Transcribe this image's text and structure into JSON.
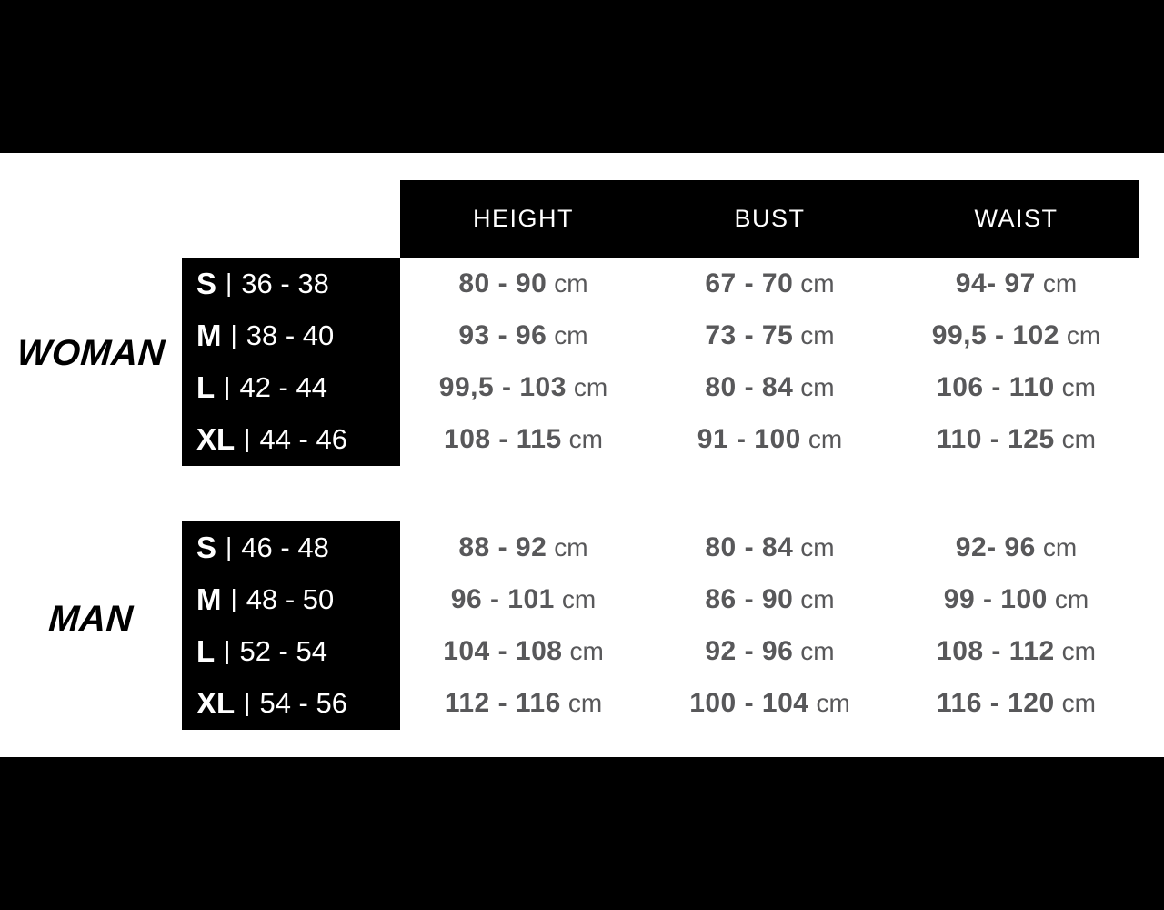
{
  "chart_data": {
    "type": "table",
    "columns": [
      "HEIGHT",
      "BUST",
      "WAIST"
    ],
    "unit": "cm",
    "separator": "|",
    "groups": [
      {
        "label": "WOMAN",
        "sizes": [
          {
            "size": "S",
            "eu_range": "36 - 38",
            "height": "80 - 90",
            "bust": "67 - 70",
            "waist": "94- 97"
          },
          {
            "size": "M",
            "eu_range": "38 - 40",
            "height": "93 - 96",
            "bust": "73 - 75",
            "waist": "99,5 - 102"
          },
          {
            "size": "L",
            "eu_range": "42 - 44",
            "height": "99,5 - 103",
            "bust": "80 - 84",
            "waist": "106 - 110"
          },
          {
            "size": "XL",
            "eu_range": "44 - 46",
            "height": "108 - 115",
            "bust": "91 - 100",
            "waist": "110 - 125"
          }
        ]
      },
      {
        "label": "MAN",
        "sizes": [
          {
            "size": "S",
            "eu_range": "46 - 48",
            "height": "88 - 92",
            "bust": "80 - 84",
            "waist": "92- 96"
          },
          {
            "size": "M",
            "eu_range": "48 - 50",
            "height": "96 - 101",
            "bust": "86 - 90",
            "waist": "99 - 100"
          },
          {
            "size": "L",
            "eu_range": "52 - 54",
            "height": "104 - 108",
            "bust": "92 - 96",
            "waist": "108 - 112"
          },
          {
            "size": "XL",
            "eu_range": "54 - 56",
            "height": "112 - 116",
            "bust": "100 - 104",
            "waist": "116 - 120"
          }
        ]
      }
    ]
  },
  "colors": {
    "background": "#ffffff",
    "bar": "#000000",
    "value_text": "#58585a",
    "box_text": "#ffffff"
  }
}
